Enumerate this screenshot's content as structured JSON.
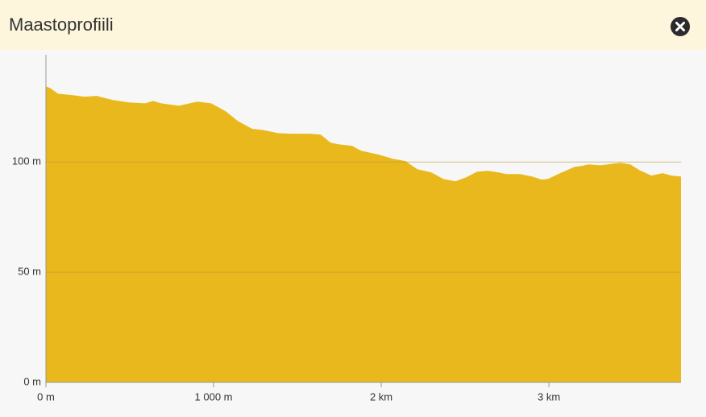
{
  "header": {
    "title": "Maastoprofiili"
  },
  "chart_data": {
    "type": "area",
    "x": [
      0,
      24,
      72,
      159,
      231,
      303,
      341,
      399,
      495,
      591,
      639,
      688,
      793,
      904,
      986,
      1072,
      1144,
      1231,
      1288,
      1385,
      1457,
      1577,
      1639,
      1697,
      1745,
      1827,
      1880,
      1986,
      2067,
      2144,
      2216,
      2298,
      2370,
      2442,
      2505,
      2572,
      2635,
      2697,
      2745,
      2827,
      2899,
      2957,
      2995,
      3067,
      3154,
      3197,
      3236,
      3308,
      3389,
      3428,
      3486,
      3538,
      3611,
      3678,
      3731,
      3788
    ],
    "values": [
      134.3,
      133.6,
      131,
      130.3,
      129.6,
      130,
      129.2,
      128.1,
      127,
      126.6,
      127.7,
      126.6,
      125.5,
      127.4,
      126.6,
      123,
      118.6,
      115,
      114.6,
      113.1,
      112.8,
      112.8,
      112.4,
      108.8,
      108,
      107.3,
      105.1,
      103.3,
      101.5,
      100.4,
      96.7,
      95.3,
      92.3,
      91.2,
      93,
      95.6,
      96,
      95.3,
      94.5,
      94.5,
      93.4,
      92,
      92.3,
      94.9,
      97.8,
      98.2,
      98.9,
      98.5,
      99.3,
      99.6,
      98.9,
      96.4,
      93.8,
      94.9,
      93.8,
      93.4
    ],
    "color": "#e9b81c",
    "xlim": [
      0,
      3788
    ],
    "ylim": [
      0,
      145
    ],
    "xticks": [
      {
        "value": 0,
        "label": "0 m"
      },
      {
        "value": 1000,
        "label": "1 000 m"
      },
      {
        "value": 2000,
        "label": "2 km"
      },
      {
        "value": 3000,
        "label": "3 km"
      }
    ],
    "yticks": [
      {
        "value": 0,
        "label": "0 m"
      },
      {
        "value": 50,
        "label": "50 m"
      },
      {
        "value": 100,
        "label": "100 m"
      }
    ],
    "grid": true
  }
}
